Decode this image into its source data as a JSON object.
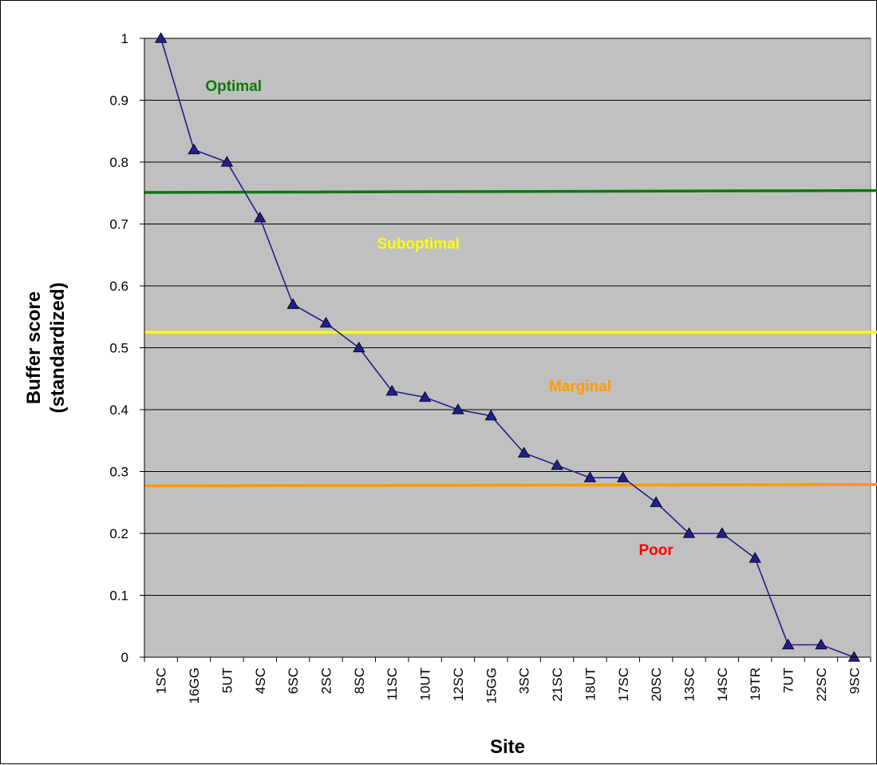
{
  "chart_data": {
    "type": "line",
    "title": "",
    "xlabel": "Site",
    "ylabel_line1": "Buffer score",
    "ylabel_line2": "(standardized)",
    "ylim": [
      0,
      1
    ],
    "yticks": [
      "0",
      "0.1",
      "0.2",
      "0.3",
      "0.4",
      "0.5",
      "0.6",
      "0.7",
      "0.8",
      "0.9",
      "1"
    ],
    "grid": true,
    "legend": "none",
    "categories": [
      "1SC",
      "16GG",
      "5UT",
      "4SC",
      "6SC",
      "2SC",
      "8SC",
      "11SC",
      "10UT",
      "12SC",
      "15GG",
      "3SC",
      "21SC",
      "18UT",
      "17SC",
      "20SC",
      "13SC",
      "14SC",
      "19TR",
      "7UT",
      "22SC",
      "9SC"
    ],
    "series": [
      {
        "values": [
          1.0,
          0.82,
          0.8,
          0.71,
          0.57,
          0.54,
          0.5,
          0.43,
          0.42,
          0.4,
          0.39,
          0.33,
          0.31,
          0.29,
          0.29,
          0.25,
          0.2,
          0.2,
          0.16,
          0.02,
          0.02,
          0.0
        ],
        "color": "#1f1f8f",
        "marker": "triangle"
      }
    ],
    "threshold_lines": [
      {
        "y_start": 0.751,
        "y_end": 0.754,
        "color": "#0a7a0a"
      },
      {
        "y_start": 0.525,
        "y_end": 0.525,
        "color": "#ffff00"
      },
      {
        "y_start": 0.277,
        "y_end": 0.279,
        "color": "#ff9900"
      }
    ],
    "zone_labels": [
      {
        "text": "Optimal",
        "x_index": 2.2,
        "y": 0.915,
        "color": "#0a7a0a"
      },
      {
        "text": "Suboptimal",
        "x_index": 7.8,
        "y": 0.66,
        "color": "#ffff00"
      },
      {
        "text": "Marginal",
        "x_index": 12.7,
        "y": 0.43,
        "color": "#ff9900"
      },
      {
        "text": "Poor",
        "x_index": 15.0,
        "y": 0.165,
        "color": "#ff0000"
      }
    ],
    "plot_background": "#c0c0c0"
  }
}
